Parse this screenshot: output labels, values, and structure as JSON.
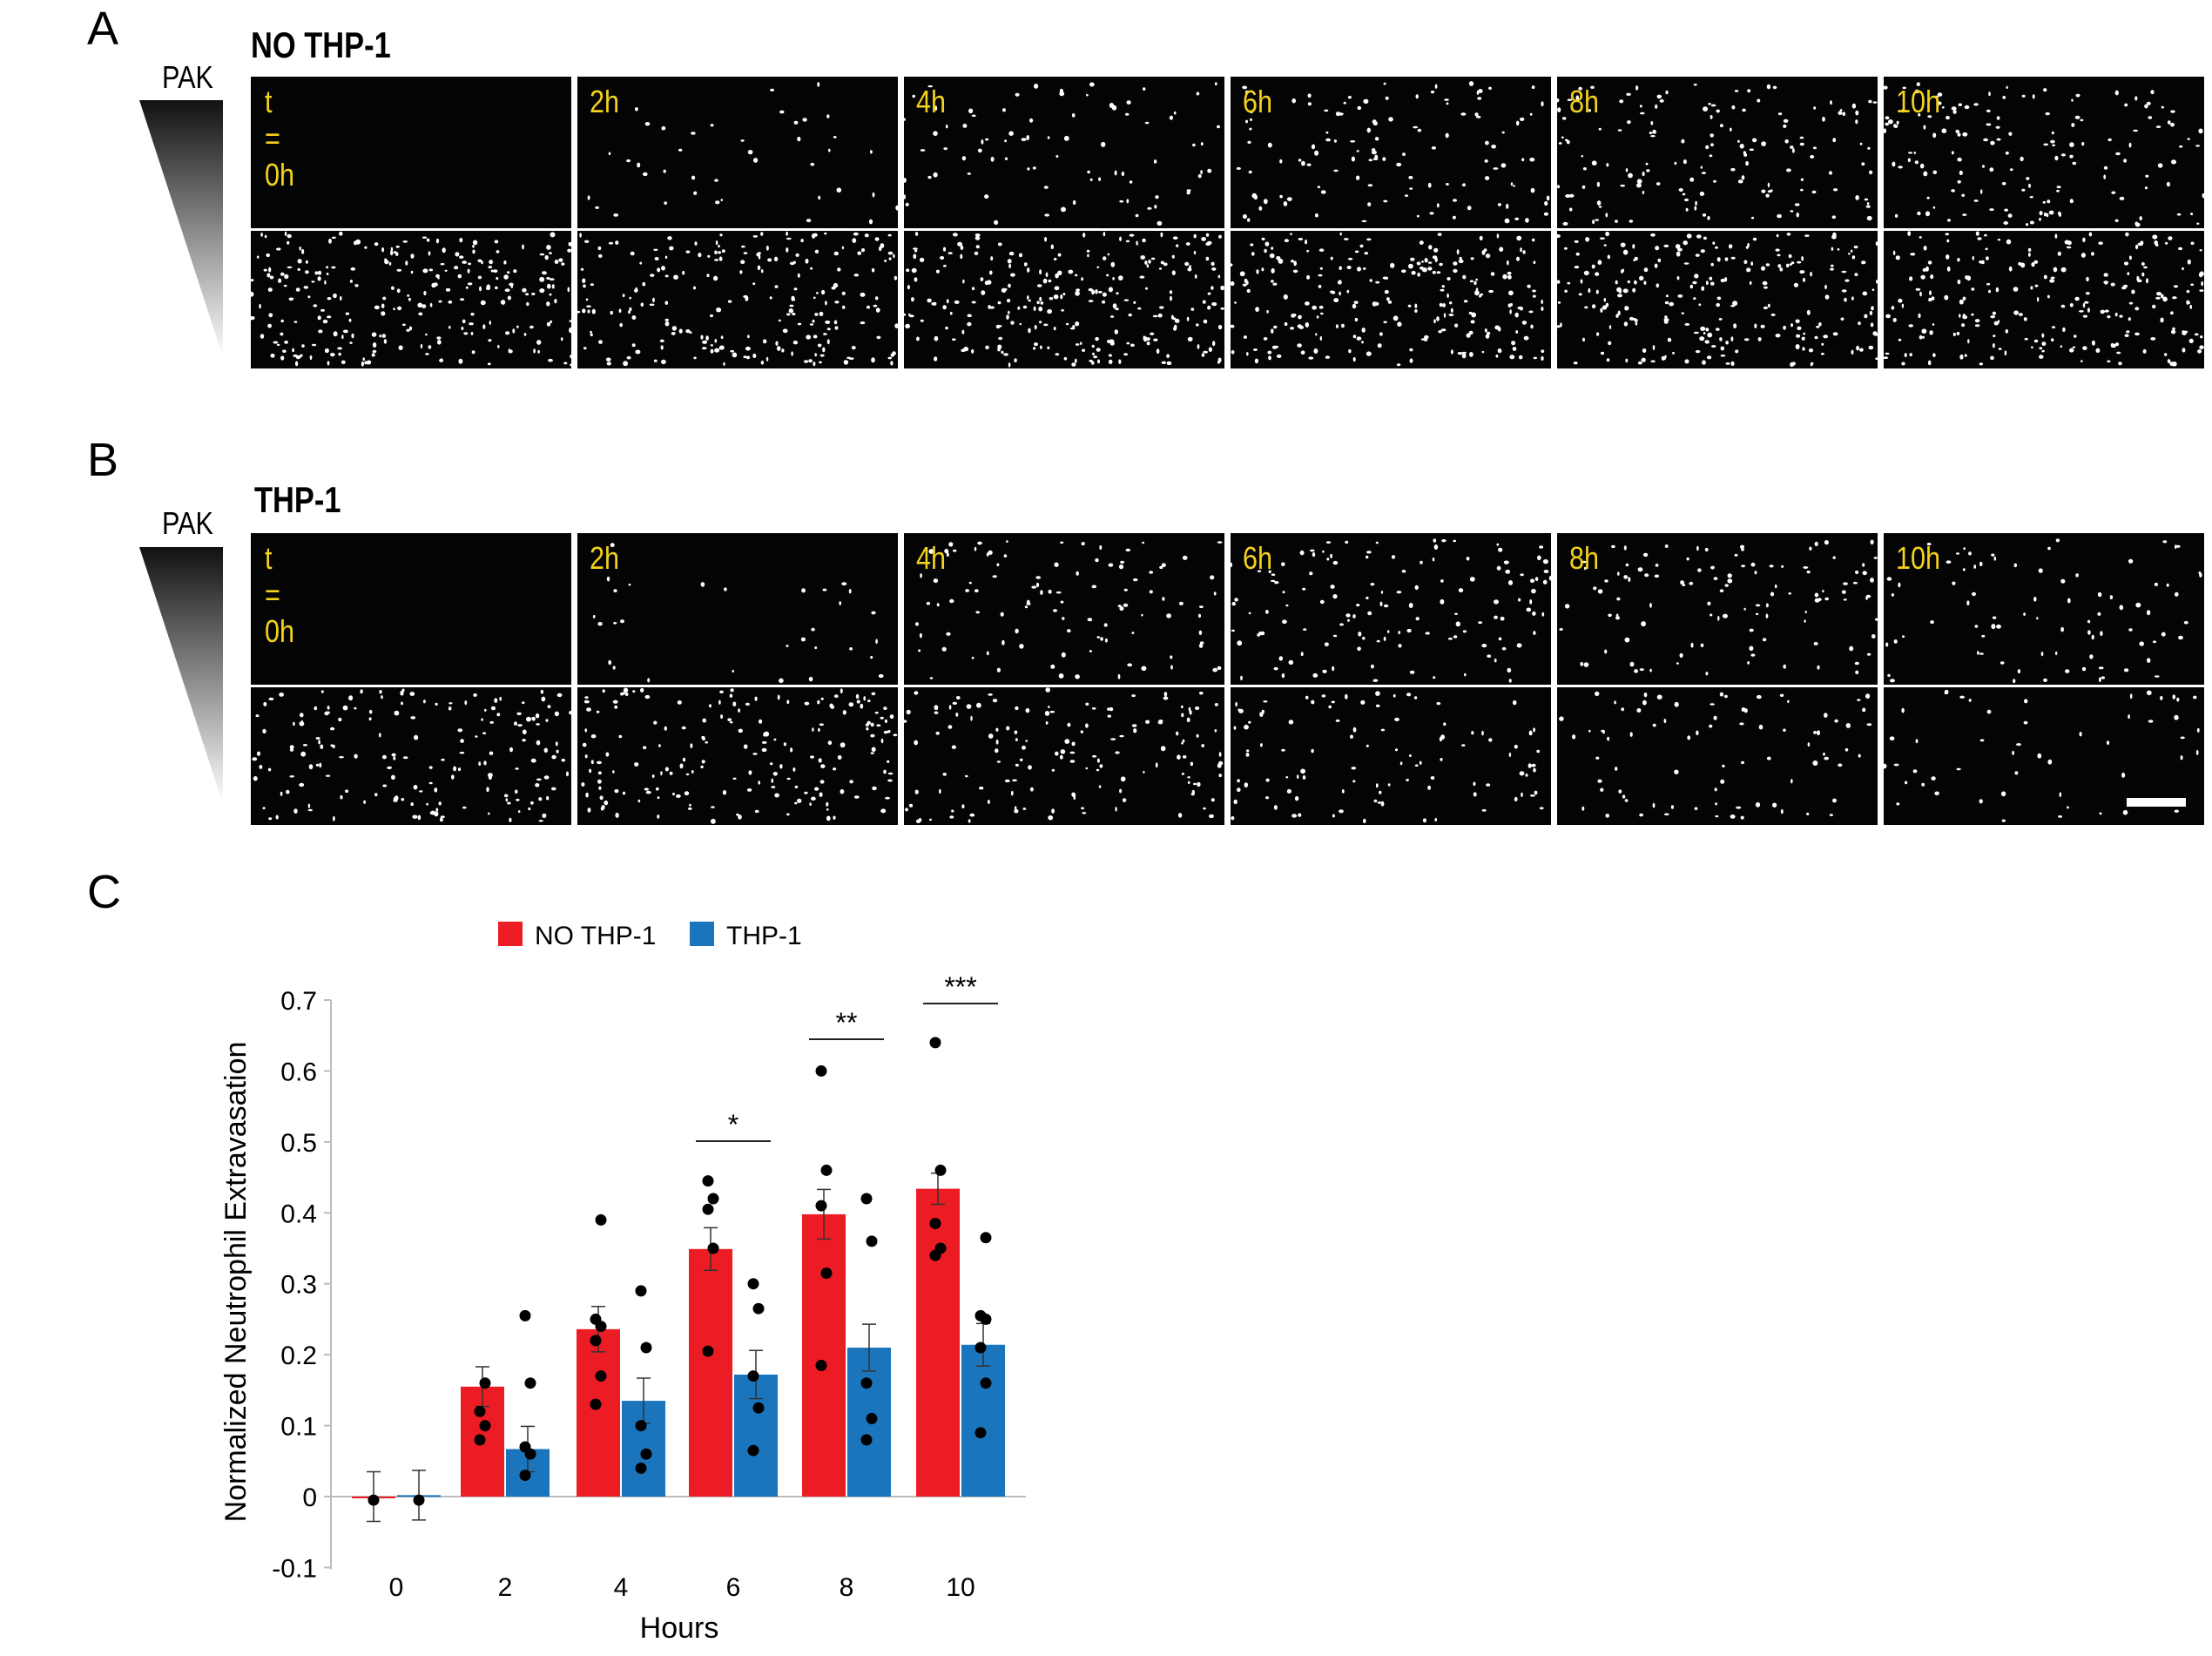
{
  "panels": {
    "a": {
      "letter": "A",
      "title": "NO THP-1",
      "pak_label": "PAK",
      "times": [
        "t = 0h",
        "2h",
        "4h",
        "6h",
        "8h",
        "10h"
      ]
    },
    "b": {
      "letter": "B",
      "title": "THP-1",
      "pak_label": "PAK",
      "times": [
        "t = 0h",
        "2h",
        "4h",
        "6h",
        "8h",
        "10h"
      ]
    },
    "c": {
      "letter": "C"
    }
  },
  "colors": {
    "no_thp1": "#ec1c24",
    "thp1": "#1a75bc",
    "time_label": "#f2d21b",
    "frame_bg": "#040404"
  },
  "chart_data": {
    "type": "bar",
    "xlabel": "Hours",
    "ylabel": "Normalized Neutrophil Extravasation",
    "categories": [
      "0",
      "2",
      "4",
      "6",
      "8",
      "10"
    ],
    "ylim": [
      -0.1,
      0.7
    ],
    "yticks": [
      "0.7",
      "0.6",
      "0.5",
      "0.4",
      "0.3",
      "0.2",
      "0.1",
      "0",
      "-0.1"
    ],
    "legend_position": "top",
    "series": [
      {
        "name": "NO THP-1",
        "color": "#ec1c24",
        "values": [
          0.0,
          0.155,
          0.236,
          0.349,
          0.398,
          0.434
        ],
        "errors": [
          0.035,
          0.028,
          0.032,
          0.03,
          0.035,
          0.022
        ],
        "points": [
          [
            -0.005
          ],
          [
            0.08,
            0.1,
            0.12,
            0.16
          ],
          [
            0.13,
            0.17,
            0.22,
            0.24,
            0.25,
            0.39
          ],
          [
            0.205,
            0.35,
            0.405,
            0.42,
            0.445
          ],
          [
            0.185,
            0.315,
            0.41,
            0.46,
            0.6
          ],
          [
            0.34,
            0.35,
            0.385,
            0.46,
            0.64
          ]
        ]
      },
      {
        "name": "THP-1",
        "color": "#1a75bc",
        "values": [
          0.002,
          0.067,
          0.135,
          0.172,
          0.21,
          0.214
        ],
        "errors": [
          0.035,
          0.032,
          0.032,
          0.034,
          0.033,
          0.03
        ],
        "points": [
          [
            -0.005
          ],
          [
            0.03,
            0.06,
            0.07,
            0.16,
            0.255
          ],
          [
            0.04,
            0.06,
            0.1,
            0.21,
            0.29
          ],
          [
            0.065,
            0.125,
            0.17,
            0.265,
            0.3
          ],
          [
            0.08,
            0.11,
            0.16,
            0.36,
            0.42
          ],
          [
            0.09,
            0.16,
            0.21,
            0.25,
            0.255,
            0.365
          ]
        ]
      }
    ],
    "significance": [
      {
        "category": "6",
        "label": "*"
      },
      {
        "category": "8",
        "label": "**"
      },
      {
        "category": "10",
        "label": "***"
      }
    ]
  }
}
